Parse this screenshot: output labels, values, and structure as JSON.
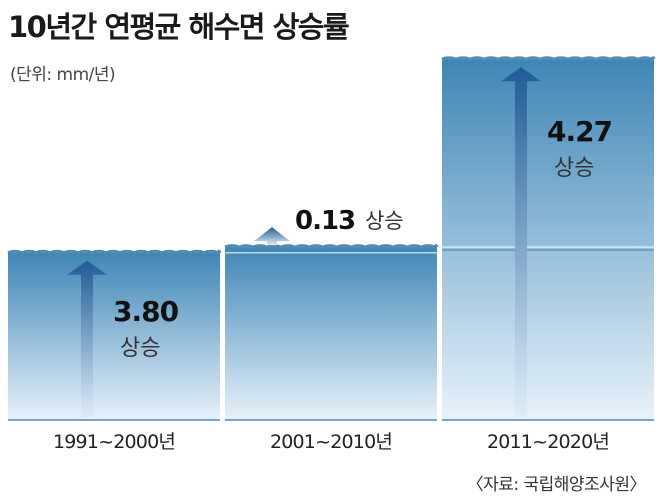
{
  "title": "10년간 연평균 해수면 상승률",
  "unit_note": "(단위: mm/년)",
  "source": "〈자료: 국립해양조사원〉",
  "colors": {
    "water_top": "#3f86b6",
    "water_bottom": "#e8f2f9",
    "wave": "#4a8cbc",
    "arrow": "#1f5b96",
    "value_text": "#111111",
    "rise_text": "#333333"
  },
  "chart_data": {
    "type": "bar",
    "title": "10년간 연평균 해수면 상승률",
    "ylabel": "(단위: mm/년)",
    "categories": [
      "1991~2000년",
      "2001~2010년",
      "2011~2020년"
    ],
    "values": [
      3.8,
      0.13,
      4.27
    ],
    "value_labels": [
      "3.80",
      "0.13",
      "4.27"
    ],
    "value_suffix": "상승",
    "cumulative_levels": [
      3.8,
      3.93,
      8.2
    ]
  }
}
